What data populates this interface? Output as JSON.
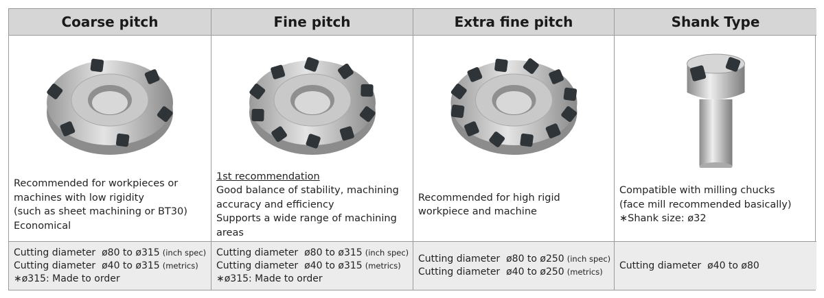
{
  "table": {
    "columns": [
      {
        "title": "Coarse pitch",
        "description": [
          "Recommended for workpieces or",
          "machines with low rigidity",
          "(such as sheet machining or BT30)",
          "Economical"
        ],
        "specs": [
          {
            "text": "Cutting diameter  ø80 to ø315",
            "note": "(inch spec)"
          },
          {
            "text": "Cutting diameter  ø40 to ø315",
            "note": "(metrics)"
          },
          {
            "text": "∗ø315: Made to order"
          }
        ]
      },
      {
        "title": "Fine pitch",
        "recommendation": "1st recommendation",
        "description": [
          "Good balance of stability, machining",
          "accuracy and efficiency",
          "Supports a wide range of machining",
          "areas"
        ],
        "specs": [
          {
            "text": "Cutting diameter  ø80 to ø315",
            "note": "(inch spec)"
          },
          {
            "text": "Cutting diameter  ø40 to ø315",
            "note": "(metrics)"
          },
          {
            "text": "∗ø315: Made to order"
          }
        ]
      },
      {
        "title": "Extra fine pitch",
        "description": [
          "Recommended for high rigid",
          "workpiece and machine"
        ],
        "specs": [
          {
            "text": "Cutting diameter  ø80 to ø250",
            "note": "(inch spec)"
          },
          {
            "text": "Cutting diameter  ø40 to ø250",
            "note": "(metrics)"
          }
        ]
      },
      {
        "title": "Shank Type",
        "description": [
          "Compatible with milling chucks",
          "(face mill recommended basically)",
          "∗Shank size: ø32"
        ],
        "specs": [
          {
            "text": "Cutting diameter  ø40 to ø80"
          }
        ]
      }
    ]
  }
}
